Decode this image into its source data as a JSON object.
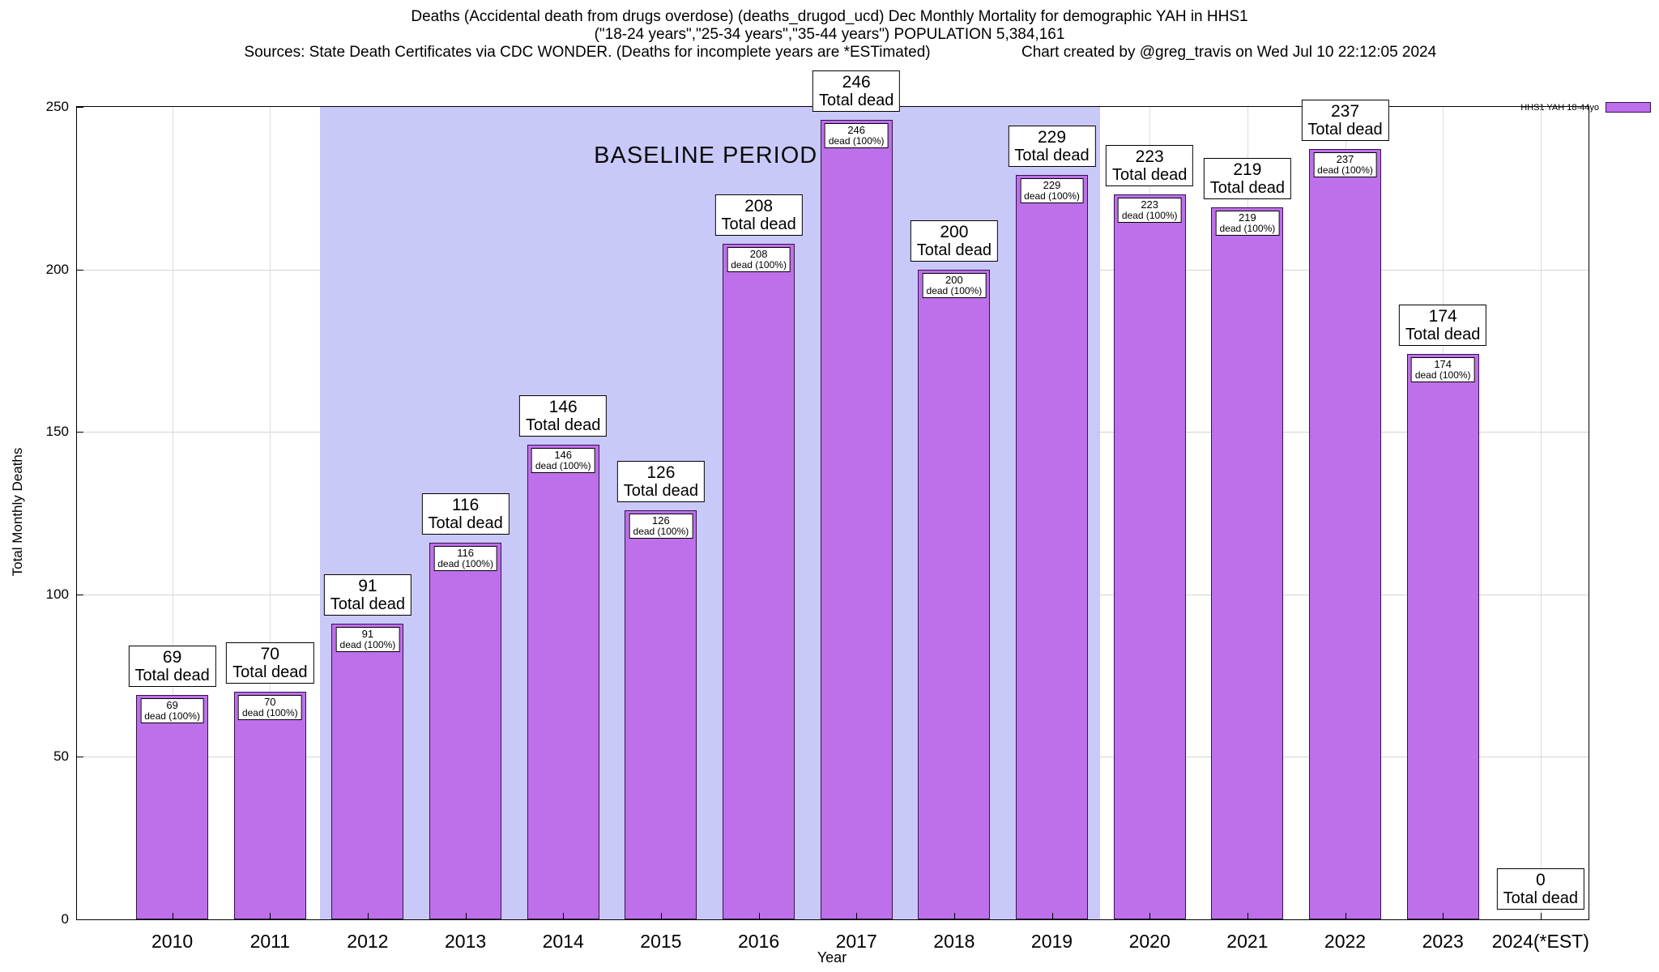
{
  "title": {
    "line1": "Deaths (Accidental death from drugs overdose) (deaths_drugod_ucd) Dec Monthly Mortality for demographic YAH in HHS1",
    "line2": "(\"18-24 years\",\"25-34 years\",\"35-44 years\") POPULATION 5,384,161",
    "line3_left": "Sources: State Death Certificates via CDC WONDER. (Deaths for incomplete years are *ESTimated)",
    "line3_right": "Chart created by @greg_travis on Wed Jul 10 22:12:05 2024"
  },
  "legend": {
    "label": "HHS1 YAH 18-44yo"
  },
  "axes": {
    "xlabel": "Year",
    "ylabel": "Total Monthly Deaths",
    "yticks": [
      0,
      50,
      100,
      150,
      200,
      250
    ]
  },
  "annotations": {
    "baseline_label": "BASELINE PERIOD"
  },
  "colors": {
    "bar_fill": "#bd70ea",
    "bar_border": "#35104e",
    "baseline_bg": "#c9c9f9"
  },
  "chart_data": {
    "type": "bar",
    "title": "Deaths (Accidental death from drugs overdose) (deaths_drugod_ucd) Dec Monthly Mortality for demographic YAH in HHS1",
    "xlabel": "Year",
    "ylabel": "Total Monthly Deaths",
    "ylim": [
      0,
      250
    ],
    "grid": true,
    "legend_position": "top-right",
    "series_name": "HHS1 YAH 18-44yo",
    "categories": [
      "2010",
      "2011",
      "2012",
      "2013",
      "2014",
      "2015",
      "2016",
      "2017",
      "2018",
      "2019",
      "2020",
      "2021",
      "2022",
      "2023",
      "2024(*EST)"
    ],
    "values": [
      69,
      70,
      91,
      116,
      146,
      126,
      208,
      246,
      200,
      229,
      223,
      219,
      237,
      174,
      0
    ],
    "bar_label_suffix": "Total dead",
    "inner_label_suffix": "dead (100%)",
    "baseline_period": {
      "from": "2012",
      "to": "2019"
    }
  }
}
